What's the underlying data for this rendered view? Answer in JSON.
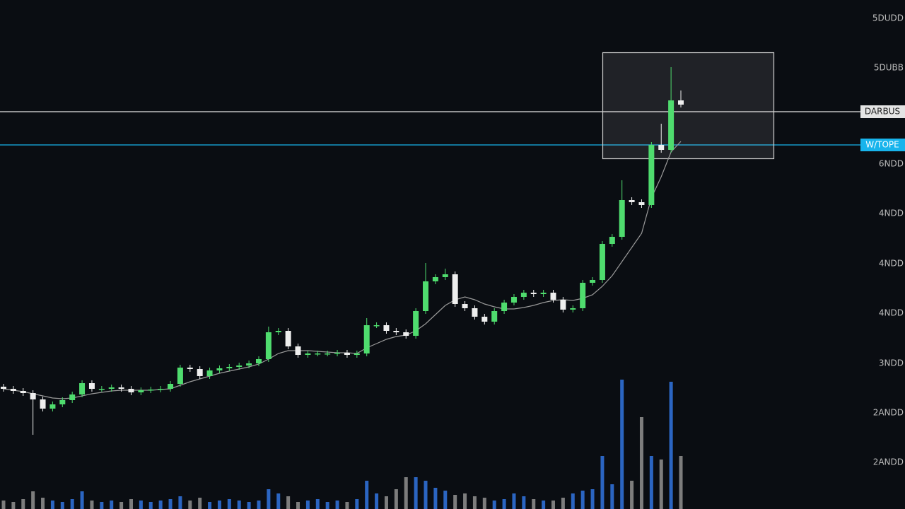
{
  "chart_data": {
    "type": "candlestick",
    "ylim": [
      0,
      720
    ],
    "yticks": [
      {
        "value": 694,
        "label": "5DUDD"
      },
      {
        "value": 624,
        "label": "5DUBB"
      },
      {
        "value": 488,
        "label": "6NDD"
      },
      {
        "value": 418,
        "label": "4NDD"
      },
      {
        "value": 347,
        "label": "4NDD"
      },
      {
        "value": 277,
        "label": "4NDD"
      },
      {
        "value": 206,
        "label": "3NDD"
      },
      {
        "value": 136,
        "label": "2ANDD"
      },
      {
        "value": 66,
        "label": "2ANDD"
      }
    ],
    "up_color": "#4fdc6e",
    "down_color": "#eeeeee",
    "open": [
      173,
      170,
      167,
      164,
      155,
      142,
      148,
      154,
      162,
      178,
      170,
      170,
      172,
      170,
      165,
      168,
      169,
      170,
      177,
      200,
      198,
      188,
      196,
      199,
      201,
      203,
      206,
      212,
      250,
      252,
      230,
      218,
      220,
      220,
      220,
      221,
      218,
      220,
      260,
      260,
      252,
      250,
      245,
      280,
      322,
      328,
      332,
      290,
      284,
      272,
      265,
      280,
      292,
      300,
      306,
      304,
      306,
      296,
      282,
      284,
      320,
      324,
      375,
      385,
      437,
      434,
      430,
      515,
      508,
      578
    ],
    "high": [
      177,
      174,
      171,
      168,
      159,
      152,
      158,
      166,
      182,
      182,
      174,
      176,
      176,
      174,
      172,
      173,
      174,
      181,
      204,
      204,
      202,
      200,
      203,
      205,
      207,
      210,
      216,
      258,
      256,
      256,
      234,
      224,
      224,
      224,
      225,
      225,
      224,
      270,
      264,
      264,
      256,
      254,
      284,
      348,
      332,
      340,
      336,
      294,
      288,
      276,
      284,
      296,
      304,
      310,
      310,
      310,
      310,
      300,
      288,
      324,
      328,
      379,
      389,
      465,
      441,
      438,
      519,
      545,
      625,
      592
    ],
    "low": [
      166,
      163,
      160,
      105,
      138,
      138,
      144,
      150,
      158,
      166,
      166,
      166,
      166,
      161,
      161,
      164,
      165,
      166,
      173,
      194,
      184,
      184,
      192,
      195,
      197,
      199,
      202,
      208,
      246,
      226,
      214,
      214,
      216,
      216,
      216,
      214,
      214,
      216,
      256,
      248,
      246,
      241,
      241,
      276,
      318,
      324,
      286,
      280,
      268,
      261,
      261,
      276,
      288,
      296,
      300,
      300,
      292,
      278,
      278,
      280,
      316,
      320,
      371,
      381,
      430,
      426,
      426,
      504,
      504,
      568
    ],
    "close": [
      170,
      167,
      164,
      155,
      142,
      148,
      154,
      162,
      178,
      170,
      170,
      172,
      170,
      165,
      168,
      169,
      170,
      177,
      200,
      198,
      188,
      196,
      199,
      201,
      203,
      206,
      212,
      250,
      252,
      230,
      218,
      220,
      220,
      220,
      221,
      218,
      220,
      260,
      260,
      252,
      250,
      245,
      280,
      322,
      328,
      332,
      290,
      284,
      272,
      265,
      280,
      292,
      300,
      306,
      304,
      306,
      296,
      282,
      284,
      320,
      324,
      375,
      385,
      437,
      434,
      430,
      515,
      508,
      578,
      572
    ],
    "ma": {
      "color": "#9a9a9a",
      "values": [
        170,
        168,
        166,
        163,
        160,
        157,
        156,
        157,
        160,
        163,
        165,
        167,
        168,
        168,
        168,
        168,
        169,
        170,
        175,
        180,
        184,
        188,
        192,
        195,
        198,
        201,
        205,
        212,
        220,
        224,
        224,
        224,
        223,
        222,
        221,
        221,
        220,
        228,
        234,
        240,
        244,
        246,
        252,
        262,
        275,
        288,
        296,
        300,
        296,
        290,
        286,
        283,
        283,
        285,
        288,
        292,
        295,
        296,
        295,
        298,
        303,
        315,
        330,
        350,
        370,
        390,
        440,
        470,
        505,
        520
      ]
    },
    "volume": {
      "ylim": [
        0,
        720
      ],
      "up_color": "#2f6fd6",
      "down_color": "#8a8a8a",
      "values": [
        12,
        10,
        14,
        25,
        16,
        12,
        10,
        14,
        25,
        12,
        10,
        12,
        10,
        14,
        12,
        10,
        12,
        14,
        18,
        12,
        16,
        10,
        12,
        14,
        12,
        10,
        12,
        28,
        22,
        18,
        10,
        12,
        14,
        10,
        12,
        10,
        14,
        40,
        22,
        18,
        28,
        45,
        45,
        40,
        30,
        26,
        20,
        22,
        18,
        16,
        12,
        14,
        22,
        18,
        14,
        12,
        12,
        16,
        22,
        26,
        28,
        75,
        35,
        183,
        40,
        130,
        75,
        70,
        180,
        75
      ]
    },
    "levels": [
      {
        "value": 562,
        "label": "DARBUS",
        "color": "#e4e4e4",
        "text_color": "#222222"
      },
      {
        "value": 515,
        "label": "W/TOPE",
        "color": "#18b4ec",
        "text_color": "#ffffff"
      }
    ]
  }
}
